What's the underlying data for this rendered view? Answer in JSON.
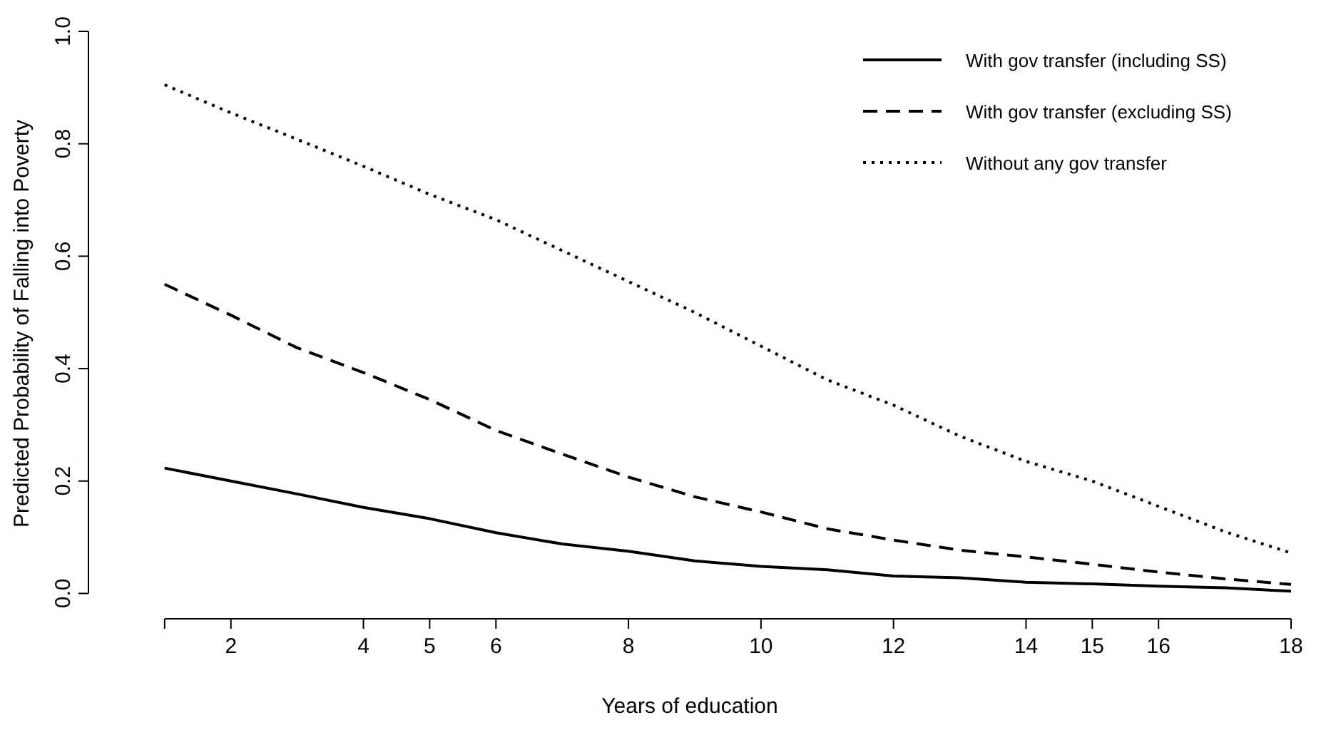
{
  "chart_data": {
    "type": "line",
    "xlabel": "Years of education",
    "ylabel": "Predicted Probability of Falling into Poverty",
    "x": [
      1,
      2,
      3,
      4,
      5,
      6,
      7,
      8,
      9,
      10,
      11,
      12,
      13,
      14,
      15,
      16,
      17,
      18
    ],
    "xlim": [
      -0.15,
      18
    ],
    "xticks": [
      {
        "value": 1,
        "label": null
      },
      2,
      4,
      5,
      6,
      8,
      10,
      12,
      14,
      15,
      16,
      18
    ],
    "ylim": [
      -0.04,
      1
    ],
    "yticks": [
      {
        "value": 0,
        "label": "0.0"
      },
      0.2,
      0.4,
      0.6,
      0.8,
      {
        "value": 1,
        "label": "1.0"
      }
    ],
    "grid": false,
    "legend": "top right",
    "series": [
      {
        "name": "With gov transfer (including SS)",
        "color": "#000000",
        "line_style": "solid",
        "values": [
          0.223,
          0.2,
          0.177,
          0.153,
          0.133,
          0.108,
          0.088,
          0.075,
          0.058,
          0.048,
          0.042,
          0.031,
          0.028,
          0.02,
          0.017,
          0.013,
          0.01,
          0.004
        ]
      },
      {
        "name": "With gov transfer (excluding SS)",
        "color": "#000000",
        "line_style": "dashed",
        "values": [
          0.55,
          0.495,
          0.437,
          0.393,
          0.345,
          0.29,
          0.248,
          0.207,
          0.172,
          0.145,
          0.115,
          0.095,
          0.077,
          0.065,
          0.052,
          0.038,
          0.026,
          0.016
        ]
      },
      {
        "name": "Without any gov transfer",
        "color": "#000000",
        "line_style": "dotted",
        "values": [
          0.905,
          0.855,
          0.808,
          0.76,
          0.71,
          0.665,
          0.61,
          0.555,
          0.5,
          0.44,
          0.38,
          0.335,
          0.28,
          0.235,
          0.2,
          0.155,
          0.11,
          0.072
        ]
      }
    ]
  }
}
